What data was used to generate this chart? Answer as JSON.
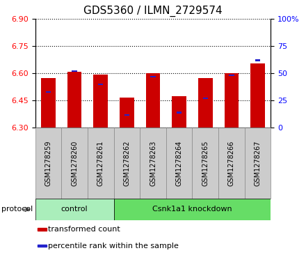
{
  "title": "GDS5360 / ILMN_2729574",
  "samples": [
    "GSM1278259",
    "GSM1278260",
    "GSM1278261",
    "GSM1278262",
    "GSM1278263",
    "GSM1278264",
    "GSM1278265",
    "GSM1278266",
    "GSM1278267"
  ],
  "transformed_count": [
    6.575,
    6.61,
    6.595,
    6.465,
    6.6,
    6.475,
    6.575,
    6.6,
    6.655
  ],
  "percentile_rank": [
    33,
    52,
    40,
    12,
    47,
    14,
    27,
    48,
    62
  ],
  "ylim_left": [
    6.3,
    6.9
  ],
  "ylim_right": [
    0,
    100
  ],
  "yticks_left": [
    6.3,
    6.45,
    6.6,
    6.75,
    6.9
  ],
  "yticks_right": [
    0,
    25,
    50,
    75,
    100
  ],
  "bar_color": "#cc0000",
  "percentile_color": "#2222cc",
  "bar_width": 0.55,
  "control_indices": [
    0,
    1,
    2
  ],
  "knockdown_indices": [
    3,
    4,
    5,
    6,
    7,
    8
  ],
  "control_label": "control",
  "knockdown_label": "Csnk1a1 knockdown",
  "control_color": "#aaeebb",
  "knockdown_color": "#66dd66",
  "protocol_label": "protocol",
  "legend_items": [
    {
      "label": "transformed count",
      "color": "#cc0000"
    },
    {
      "label": "percentile rank within the sample",
      "color": "#2222cc"
    }
  ],
  "title_fontsize": 11,
  "tick_fontsize": 8,
  "sample_fontsize": 7,
  "label_fontsize": 8,
  "sample_box_color": "#cccccc",
  "sample_box_edge": "#888888"
}
